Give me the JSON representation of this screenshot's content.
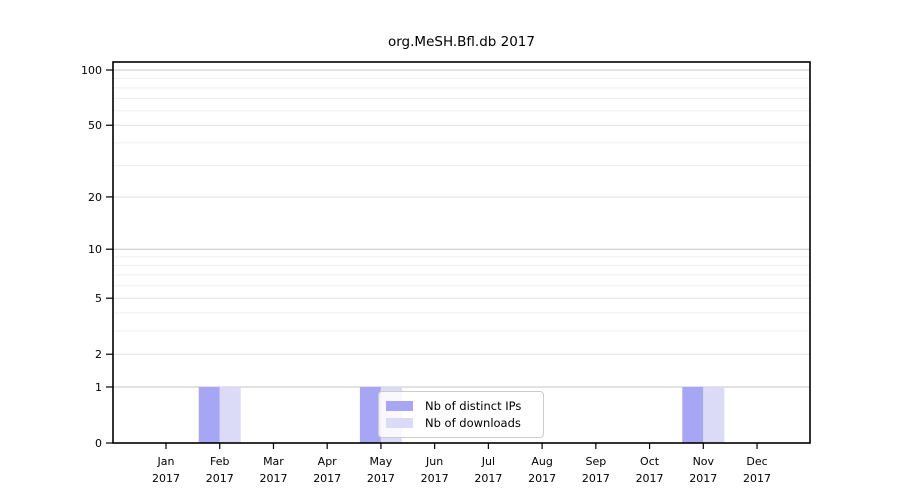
{
  "chart_data": {
    "type": "bar",
    "title": "org.MeSH.Bfl.db 2017",
    "categories": [
      "Jan",
      "Feb",
      "Mar",
      "Apr",
      "May",
      "Jun",
      "Jul",
      "Aug",
      "Sep",
      "Oct",
      "Nov",
      "Dec"
    ],
    "x_year_label": "2017",
    "series": [
      {
        "name": "Nb of distinct IPs",
        "color": "#a6a6f4",
        "values": [
          0,
          1,
          0,
          0,
          1,
          0,
          0,
          0,
          0,
          0,
          1,
          0
        ]
      },
      {
        "name": "Nb of downloads",
        "color": "#dbdbf8",
        "values": [
          0,
          1,
          0,
          0,
          1,
          0,
          0,
          0,
          0,
          0,
          1,
          0
        ]
      }
    ],
    "y_axis": {
      "scale": "log1p",
      "major_ticks": [
        0,
        1,
        2,
        5,
        10,
        20,
        50,
        100
      ],
      "decade_ticks": [
        1,
        10,
        100
      ],
      "minor_gridlines": [
        3,
        4,
        6,
        7,
        8,
        9,
        30,
        40,
        60,
        70,
        80,
        90
      ],
      "ylim": [
        0,
        115
      ]
    },
    "legend": {
      "position": "lower-center-left"
    },
    "colors": {
      "decade_grid": "#c6c6c6",
      "major_grid": "#e2e2e2",
      "minor_grid": "#efefef",
      "spine": "#000000"
    }
  }
}
